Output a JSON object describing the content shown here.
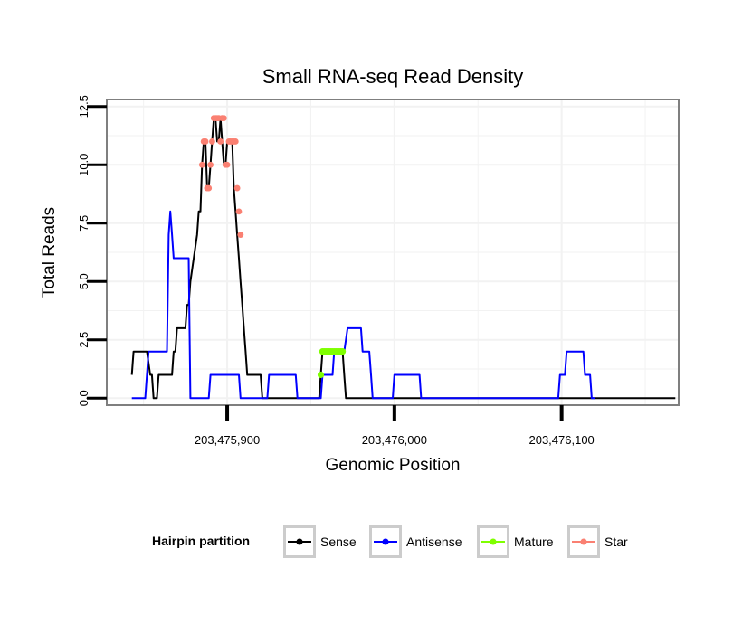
{
  "chart_data": {
    "type": "line",
    "title": "Small RNA-seq Read Density",
    "xlabel": "Genomic Position",
    "ylabel": "Total Reads",
    "xlim": [
      203475828,
      203476170
    ],
    "ylim": [
      -0.3,
      12.8
    ],
    "x_ticks": [
      203475900,
      203476000,
      203476100
    ],
    "x_tick_labels": [
      "203,475,900",
      "203,476,000",
      "203,476,100"
    ],
    "y_ticks": [
      0,
      2.5,
      5,
      7.5,
      10,
      12.5
    ],
    "y_tick_labels": [
      "0.0",
      "2.5",
      "5.0",
      "7.5",
      "10.0",
      "12.5"
    ],
    "grid": true,
    "legend": {
      "title": "Hairpin partition",
      "position": "bottom",
      "entries": [
        "Sense",
        "Antisense",
        "Mature",
        "Star"
      ]
    },
    "colors": {
      "Sense": "#000000",
      "Antisense": "#0000ff",
      "Mature": "#7fff00",
      "Star": "#fa8072",
      "panel_border": "#7f7f7f",
      "grid": "#f2f2f2"
    },
    "series": [
      {
        "name": "Sense",
        "points": [
          [
            203475843,
            1
          ],
          [
            203475844,
            2
          ],
          [
            203475852,
            2
          ],
          [
            203475853,
            1.5
          ],
          [
            203475854,
            1
          ],
          [
            203475855,
            1
          ],
          [
            203475856,
            0
          ],
          [
            203475858,
            0
          ],
          [
            203475859,
            1
          ],
          [
            203475867,
            1
          ],
          [
            203475868,
            2
          ],
          [
            203475869,
            2
          ],
          [
            203475870,
            3
          ],
          [
            203475875,
            3
          ],
          [
            203475876,
            4
          ],
          [
            203475877,
            4
          ],
          [
            203475878,
            5
          ],
          [
            203475880,
            6
          ],
          [
            203475882,
            7
          ],
          [
            203475883,
            8
          ],
          [
            203475884,
            8
          ],
          [
            203475885,
            10
          ],
          [
            203475886,
            11
          ],
          [
            203475887,
            11
          ],
          [
            203475888,
            9
          ],
          [
            203475889,
            9
          ],
          [
            203475890,
            10
          ],
          [
            203475891,
            11
          ],
          [
            203475892,
            12
          ],
          [
            203475893,
            12
          ],
          [
            203475894,
            11
          ],
          [
            203475895,
            11
          ],
          [
            203475896,
            12
          ],
          [
            203475897,
            11
          ],
          [
            203475898,
            10
          ],
          [
            203475899,
            10
          ],
          [
            203475900,
            11
          ],
          [
            203475903,
            11
          ],
          [
            203475904,
            9
          ],
          [
            203475905,
            8
          ],
          [
            203475906,
            7
          ],
          [
            203475907,
            6
          ],
          [
            203475908,
            5
          ],
          [
            203475909,
            4
          ],
          [
            203475910,
            3
          ],
          [
            203475911,
            2
          ],
          [
            203475912,
            1
          ],
          [
            203475920,
            1
          ],
          [
            203475921,
            0
          ],
          [
            203475955,
            0
          ],
          [
            203475956,
            1
          ],
          [
            203475957,
            2
          ],
          [
            203475969,
            2
          ],
          [
            203475970,
            1
          ],
          [
            203475971,
            0
          ],
          [
            203476168,
            0
          ]
        ]
      },
      {
        "name": "Antisense",
        "points": [
          [
            203475843,
            0
          ],
          [
            203475851,
            0
          ],
          [
            203475853,
            2
          ],
          [
            203475864,
            2
          ],
          [
            203475865,
            7
          ],
          [
            203475866,
            8
          ],
          [
            203475867,
            7
          ],
          [
            203475868,
            6
          ],
          [
            203475877,
            6
          ],
          [
            203475878,
            0
          ],
          [
            203475889,
            0
          ],
          [
            203475890,
            1
          ],
          [
            203475907,
            1
          ],
          [
            203475908,
            0
          ],
          [
            203475924,
            0
          ],
          [
            203475925,
            1
          ],
          [
            203475941,
            1
          ],
          [
            203475942,
            0
          ],
          [
            203475956,
            0
          ],
          [
            203475957,
            1
          ],
          [
            203475963,
            1
          ],
          [
            203475964,
            2
          ],
          [
            203475965,
            2
          ],
          [
            203475966,
            2
          ],
          [
            203475967,
            2
          ],
          [
            203475968,
            2
          ],
          [
            203475969,
            2
          ],
          [
            203475970,
            2
          ],
          [
            203475972,
            3
          ],
          [
            203475980,
            3
          ],
          [
            203475981,
            2
          ],
          [
            203475985,
            2
          ],
          [
            203475986,
            1
          ],
          [
            203475987,
            0
          ],
          [
            203475999,
            0
          ],
          [
            203476000,
            1
          ],
          [
            203476015,
            1
          ],
          [
            203476016,
            0
          ],
          [
            203476098,
            0
          ],
          [
            203476099,
            1
          ],
          [
            203476102,
            1
          ],
          [
            203476103,
            2
          ],
          [
            203476113,
            2
          ],
          [
            203476114,
            1
          ],
          [
            203476117,
            1
          ],
          [
            203476118,
            0
          ],
          [
            203476120,
            0
          ]
        ]
      },
      {
        "name": "Mature",
        "points": [
          [
            203475956,
            1
          ],
          [
            203475957,
            2
          ],
          [
            203475958,
            2
          ],
          [
            203475959,
            2
          ],
          [
            203475960,
            2
          ],
          [
            203475961,
            2
          ],
          [
            203475962,
            2
          ],
          [
            203475963,
            2
          ],
          [
            203475964,
            2
          ],
          [
            203475965,
            2
          ],
          [
            203475966,
            2
          ],
          [
            203475967,
            2
          ],
          [
            203475968,
            2
          ],
          [
            203475969,
            2
          ]
        ]
      },
      {
        "name": "Star",
        "points": [
          [
            203475885,
            10
          ],
          [
            203475886,
            11
          ],
          [
            203475887,
            11
          ],
          [
            203475888,
            9
          ],
          [
            203475889,
            9
          ],
          [
            203475890,
            10
          ],
          [
            203475891,
            11
          ],
          [
            203475892,
            12
          ],
          [
            203475893,
            12
          ],
          [
            203475894,
            12
          ],
          [
            203475895,
            12
          ],
          [
            203475896,
            11
          ],
          [
            203475897,
            12
          ],
          [
            203475898,
            12
          ],
          [
            203475899,
            10
          ],
          [
            203475900,
            10
          ],
          [
            203475901,
            11
          ],
          [
            203475902,
            11
          ],
          [
            203475903,
            11
          ],
          [
            203475904,
            11
          ],
          [
            203475905,
            11
          ],
          [
            203475906,
            9
          ],
          [
            203475907,
            8
          ],
          [
            203475908,
            7
          ]
        ]
      }
    ]
  }
}
